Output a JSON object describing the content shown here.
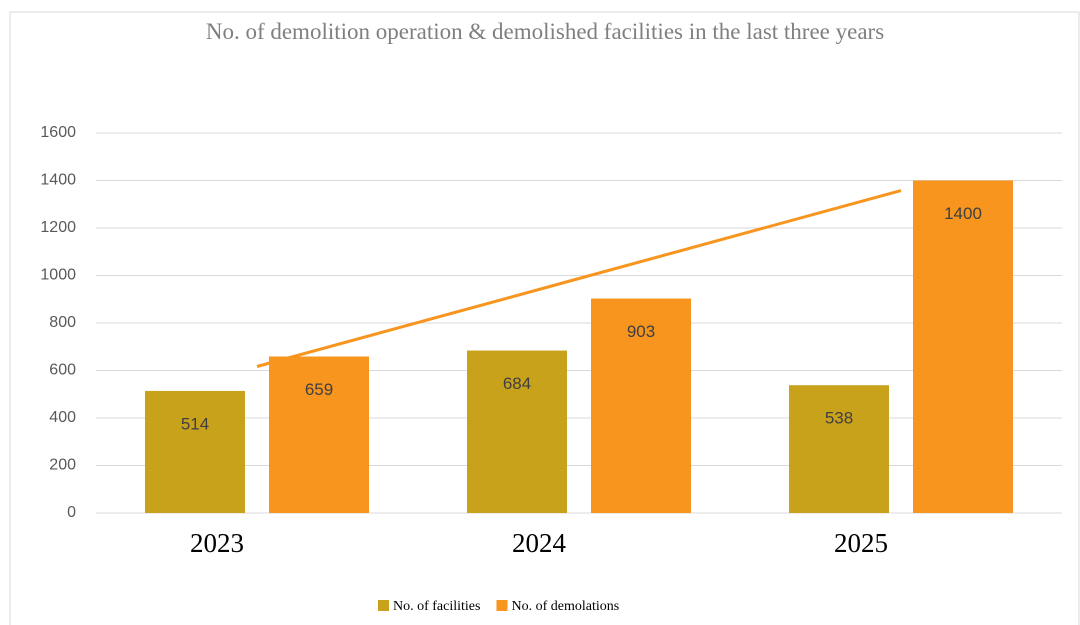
{
  "chart_data": {
    "type": "bar",
    "title": "No. of demolition operation & demolished facilities in the last three years",
    "categories": [
      "2023",
      "2024",
      "2025"
    ],
    "series": [
      {
        "name": "No. of facilities",
        "color": "#c9a21c",
        "values": [
          514,
          684,
          538
        ]
      },
      {
        "name": "No. of demolations",
        "color": "#f7951e",
        "values": [
          659,
          903,
          1400
        ]
      }
    ],
    "ylim": [
      0,
      1600
    ],
    "yticks": [
      0,
      200,
      400,
      600,
      800,
      1000,
      1200,
      1400,
      1600
    ],
    "grid": true,
    "legend": "bottom",
    "trendline": true
  }
}
